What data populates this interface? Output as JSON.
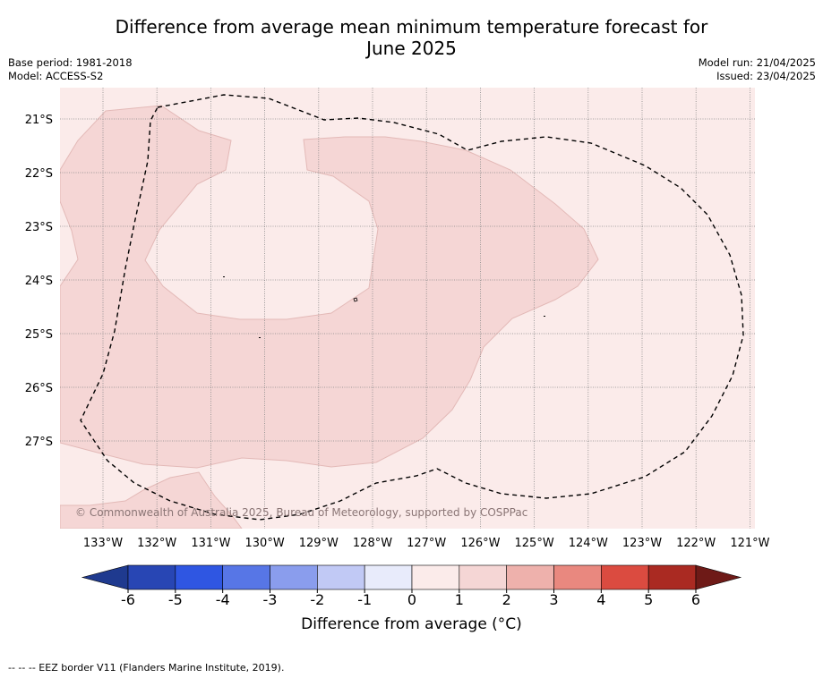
{
  "title_line1": "Difference from average mean minimum temperature forecast for",
  "title_line2": "June 2025",
  "base_period": "Base period: 1981-2018",
  "model": "Model: ACCESS-S2",
  "model_run": "Model run: 21/04/2025",
  "issued": "Issued: 23/04/2025",
  "copyright": "© Commonwealth of Australia 2025, Bureau of Meteorology, supported by COSPPac",
  "map": {
    "lat_labels": [
      "21°S",
      "22°S",
      "23°S",
      "24°S",
      "25°S",
      "26°S",
      "27°S"
    ],
    "lon_labels": [
      "133°W",
      "132°W",
      "131°W",
      "130°W",
      "129°W",
      "128°W",
      "127°W",
      "126°W",
      "125°W",
      "124°W",
      "123°W",
      "122°W",
      "121°W"
    ],
    "background_class_color": "#fbebea",
    "anomaly_class_color": "#f5d6d5",
    "eez_line_style": "dashed"
  },
  "colorbar": {
    "ticks": [
      "-6",
      "-5",
      "-4",
      "-3",
      "-2",
      "-1",
      "0",
      "1",
      "2",
      "3",
      "4",
      "5",
      "6"
    ],
    "colors": [
      "#1f3a8f",
      "#2846b4",
      "#2f56e2",
      "#5776e6",
      "#8a9ded",
      "#c1c9f5",
      "#e8ebfb",
      "#fbebea",
      "#f5d6d5",
      "#eeb1ac",
      "#e9887f",
      "#db4b40",
      "#aa2a22",
      "#6e1a17"
    ],
    "label": "Difference from average (°C)"
  },
  "footer": "--  --  -- EEZ border V11 (Flanders Marine Institute, 2019)."
}
